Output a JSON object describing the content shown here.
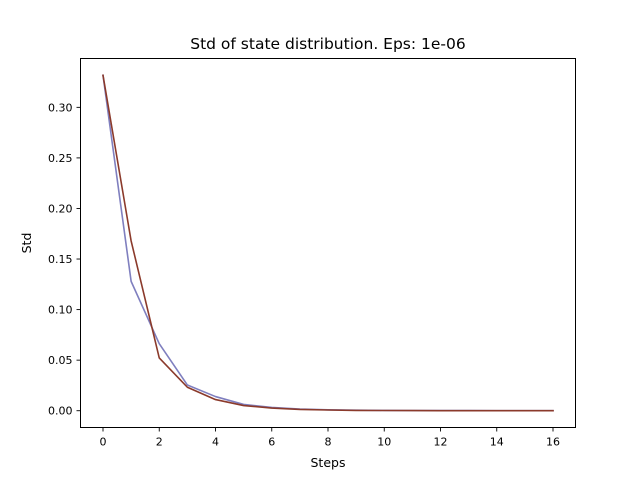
{
  "chart_data": {
    "type": "line",
    "title": "Std of state distribution. Eps: 1e-06",
    "xlabel": "Steps",
    "ylabel": "Std",
    "xlim": [
      -0.8,
      16.8
    ],
    "ylim": [
      -0.0166,
      0.3483
    ],
    "xticks": [
      0,
      2,
      4,
      6,
      8,
      10,
      12,
      14,
      16
    ],
    "xtick_labels": [
      "0",
      "2",
      "4",
      "6",
      "8",
      "10",
      "12",
      "14",
      "16"
    ],
    "yticks": [
      0.0,
      0.05,
      0.1,
      0.15,
      0.2,
      0.25,
      0.3
    ],
    "ytick_labels": [
      "0.00",
      "0.05",
      "0.10",
      "0.15",
      "0.20",
      "0.25",
      "0.30"
    ],
    "grid": false,
    "x": [
      0,
      1,
      2,
      3,
      4,
      5,
      6,
      7,
      8,
      9,
      10,
      11,
      12,
      13,
      14,
      15,
      16
    ],
    "series": [
      {
        "color": "#7f7fbf",
        "values": [
          0.3317,
          0.1279,
          0.0663,
          0.0254,
          0.014,
          0.0062,
          0.0032,
          0.0017,
          0.0009,
          0.0005,
          0.0003,
          0.0002,
          0.0001,
          0.0001,
          0.0,
          0.0,
          0.0
        ]
      },
      {
        "color": "#8b3a2b",
        "values": [
          0.3317,
          0.1679,
          0.0522,
          0.0232,
          0.011,
          0.0051,
          0.0026,
          0.0013,
          0.0007,
          0.0003,
          0.0002,
          0.0001,
          0.0,
          0.0,
          0.0,
          0.0,
          0.0
        ]
      }
    ]
  }
}
